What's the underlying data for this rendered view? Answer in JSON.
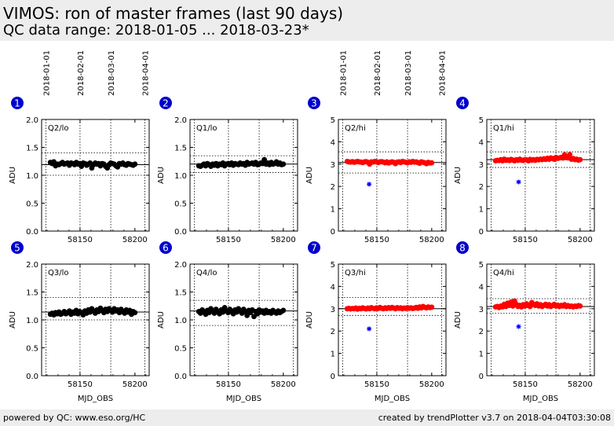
{
  "header": {
    "title": "VIMOS: ron of master frames (last 90 days)",
    "subtitle": "QC data range: 2018-01-05 ... 2018-03-23*"
  },
  "footer": {
    "left": "powered by QC: www.eso.org/HC",
    "right": "created by trendPlotter v3.7 on 2018-04-04T03:30:08"
  },
  "colors": {
    "lo_series": "#000000",
    "hi_series": "#ff0000",
    "outlier": "#0000ff",
    "badge": "#0000cc"
  },
  "top_date_axis": {
    "labels": [
      "2018-01-01",
      "2018-02-01",
      "2018-03-01",
      "2018-04-01"
    ],
    "mjd": [
      58119,
      58150,
      58178,
      58209
    ]
  },
  "chart_data": [
    {
      "type": "scatter",
      "badge": "1",
      "panel_label": "Q2/lo",
      "ylabel": "ADU",
      "xlabel": "",
      "xticks": [
        58150,
        58200
      ],
      "xlim": [
        58115,
        58213
      ],
      "ylim": [
        0.0,
        2.0
      ],
      "yticks": [
        "0.0",
        "0.5",
        "1.0",
        "1.5",
        "2.0"
      ],
      "mean": 1.19,
      "band": [
        1.0,
        1.4
      ],
      "series": [
        {
          "color": "black",
          "x_start": 58123,
          "x_end": 58200,
          "y_values": [
            1.23,
            1.21,
            1.24,
            1.17,
            1.2,
            1.19,
            1.21,
            1.23,
            1.2,
            1.21,
            1.22,
            1.18,
            1.22,
            1.21,
            1.19,
            1.23,
            1.2,
            1.21,
            1.16,
            1.22,
            1.21,
            1.18,
            1.2,
            1.22,
            1.13,
            1.19,
            1.22,
            1.2,
            1.21,
            1.17,
            1.21,
            1.2,
            1.16,
            1.13,
            1.19,
            1.22,
            1.21,
            1.2,
            1.17,
            1.15,
            1.21,
            1.2,
            1.22,
            1.19,
            1.18,
            1.21,
            1.2,
            1.19,
            1.18,
            1.2
          ]
        }
      ],
      "outliers": []
    },
    {
      "type": "scatter",
      "badge": "2",
      "panel_label": "Q1/lo",
      "ylabel": "ADU",
      "xlabel": "",
      "xticks": [
        58150,
        58200
      ],
      "xlim": [
        58115,
        58213
      ],
      "ylim": [
        0.0,
        2.0
      ],
      "yticks": [
        "0.0",
        "0.5",
        "1.0",
        "1.5",
        "2.0"
      ],
      "mean": 1.2,
      "band": [
        1.05,
        1.35
      ],
      "series": [
        {
          "color": "black",
          "x_start": 58123,
          "x_end": 58200,
          "y_values": [
            1.17,
            1.16,
            1.18,
            1.2,
            1.17,
            1.21,
            1.19,
            1.16,
            1.2,
            1.18,
            1.21,
            1.17,
            1.2,
            1.19,
            1.22,
            1.17,
            1.2,
            1.21,
            1.19,
            1.22,
            1.18,
            1.21,
            1.2,
            1.19,
            1.22,
            1.2,
            1.21,
            1.18,
            1.23,
            1.2,
            1.21,
            1.22,
            1.2,
            1.23,
            1.19,
            1.2,
            1.22,
            1.21,
            1.28,
            1.2,
            1.22,
            1.19,
            1.23,
            1.2,
            1.21,
            1.24,
            1.2,
            1.22,
            1.19,
            1.2
          ]
        }
      ],
      "outliers": []
    },
    {
      "type": "scatter",
      "badge": "3",
      "panel_label": "Q2/hi",
      "ylabel": "ADU",
      "xlabel": "",
      "xticks": [
        58150,
        58200
      ],
      "xlim": [
        58115,
        58213
      ],
      "ylim": [
        0,
        5
      ],
      "yticks": [
        "0",
        "1",
        "2",
        "3",
        "4",
        "5"
      ],
      "mean": 3.07,
      "band": [
        2.6,
        3.55
      ],
      "series": [
        {
          "color": "red",
          "x_start": 58123,
          "x_end": 58200,
          "y_values": [
            3.12,
            3.1,
            3.09,
            3.11,
            3.08,
            3.1,
            3.12,
            3.1,
            3.09,
            3.07,
            3.1,
            3.11,
            3.08,
            3.0,
            3.1,
            3.09,
            3.12,
            3.1,
            3.07,
            3.1,
            3.11,
            3.09,
            3.06,
            3.1,
            3.05,
            3.08,
            3.1,
            3.08,
            3.02,
            3.09,
            3.1,
            3.07,
            3.12,
            3.1,
            3.08,
            3.06,
            3.1,
            3.08,
            3.12,
            3.09,
            3.1,
            3.07,
            3.04,
            3.1,
            3.08,
            3.06,
            3.02,
            3.08,
            3.05,
            3.06
          ]
        }
      ],
      "outliers": [
        {
          "x": 58143,
          "y": 2.1
        }
      ]
    },
    {
      "type": "scatter",
      "badge": "4",
      "panel_label": "Q1/hi",
      "ylabel": "ADU",
      "xlabel": "",
      "xticks": [
        58150,
        58200
      ],
      "xlim": [
        58115,
        58213
      ],
      "ylim": [
        0,
        5
      ],
      "yticks": [
        "0",
        "1",
        "2",
        "3",
        "4",
        "5"
      ],
      "mean": 3.2,
      "band": [
        2.85,
        3.55
      ],
      "series": [
        {
          "color": "red",
          "x_start": 58123,
          "x_end": 58200,
          "y_values": [
            3.15,
            3.17,
            3.16,
            3.2,
            3.15,
            3.22,
            3.17,
            3.19,
            3.16,
            3.21,
            3.18,
            3.15,
            3.2,
            3.17,
            3.22,
            3.18,
            3.16,
            3.2,
            3.19,
            3.15,
            3.21,
            3.18,
            3.2,
            3.17,
            3.21,
            3.19,
            3.22,
            3.2,
            3.24,
            3.21,
            3.26,
            3.22,
            3.28,
            3.25,
            3.22,
            3.3,
            3.26,
            3.28,
            3.3,
            3.27,
            3.42,
            3.3,
            3.28,
            3.43,
            3.22,
            3.25,
            3.2,
            3.22,
            3.18,
            3.2
          ]
        }
      ],
      "outliers": [
        {
          "x": 58144,
          "y": 2.2
        }
      ]
    },
    {
      "type": "scatter",
      "badge": "5",
      "panel_label": "Q3/lo",
      "ylabel": "ADU",
      "xlabel": "",
      "xticks": [
        58150,
        58200
      ],
      "xlim": [
        58115,
        58213
      ],
      "ylim": [
        0.0,
        2.0
      ],
      "yticks": [
        "0.0",
        "0.5",
        "1.0",
        "1.5",
        "2.0"
      ],
      "mean": 1.14,
      "band": [
        1.0,
        1.4
      ],
      "series": [
        {
          "color": "black",
          "x_start": 58123,
          "x_end": 58200,
          "y_values": [
            1.1,
            1.12,
            1.09,
            1.13,
            1.11,
            1.14,
            1.1,
            1.12,
            1.15,
            1.11,
            1.13,
            1.16,
            1.1,
            1.14,
            1.12,
            1.17,
            1.11,
            1.15,
            1.13,
            1.09,
            1.16,
            1.12,
            1.18,
            1.14,
            1.2,
            1.16,
            1.12,
            1.18,
            1.15,
            1.21,
            1.17,
            1.13,
            1.19,
            1.15,
            1.2,
            1.17,
            1.14,
            1.2,
            1.16,
            1.18,
            1.13,
            1.19,
            1.15,
            1.12,
            1.18,
            1.14,
            1.17,
            1.1,
            1.15,
            1.13
          ]
        }
      ],
      "outliers": []
    },
    {
      "type": "scatter",
      "badge": "6",
      "panel_label": "Q4/lo",
      "ylabel": "ADU",
      "xlabel": "",
      "xticks": [
        58150,
        58200
      ],
      "xlim": [
        58115,
        58213
      ],
      "ylim": [
        0.0,
        2.0
      ],
      "yticks": [
        "0.0",
        "0.5",
        "1.0",
        "1.5",
        "2.0"
      ],
      "mean": 1.16,
      "band": [
        0.9,
        1.35
      ],
      "series": [
        {
          "color": "black",
          "x_start": 58123,
          "x_end": 58200,
          "y_values": [
            1.15,
            1.12,
            1.18,
            1.14,
            1.1,
            1.17,
            1.13,
            1.2,
            1.16,
            1.12,
            1.19,
            1.15,
            1.11,
            1.18,
            1.14,
            1.22,
            1.16,
            1.13,
            1.19,
            1.15,
            1.11,
            1.18,
            1.14,
            1.2,
            1.16,
            1.12,
            1.19,
            1.15,
            1.08,
            1.17,
            1.13,
            1.18,
            1.06,
            1.15,
            1.11,
            1.18,
            1.14,
            1.16,
            1.12,
            1.17,
            1.13,
            1.15,
            1.12,
            1.17,
            1.14,
            1.12,
            1.16,
            1.13,
            1.15,
            1.17
          ]
        }
      ],
      "outliers": []
    },
    {
      "type": "scatter",
      "badge": "7",
      "panel_label": "Q3/hi",
      "ylabel": "ADU",
      "xlabel": "",
      "xticks": [
        58150,
        58200
      ],
      "xlim": [
        58115,
        58213
      ],
      "ylim": [
        0,
        5
      ],
      "yticks": [
        "0",
        "1",
        "2",
        "3",
        "4",
        "5"
      ],
      "mean": 3.0,
      "band": [
        2.7,
        3.5
      ],
      "series": [
        {
          "color": "red",
          "x_start": 58123,
          "x_end": 58200,
          "y_values": [
            3.0,
            3.02,
            2.99,
            3.01,
            3.0,
            3.03,
            2.98,
            3.02,
            3.0,
            3.04,
            3.01,
            2.99,
            3.03,
            3.0,
            3.05,
            3.02,
            3.0,
            3.04,
            3.01,
            3.06,
            3.02,
            3.0,
            3.04,
            3.01,
            3.05,
            3.02,
            3.06,
            3.03,
            3.0,
            3.05,
            3.02,
            3.04,
            3.0,
            3.03,
            3.01,
            3.05,
            3.02,
            3.04,
            3.01,
            3.03,
            3.06,
            3.02,
            3.08,
            3.04,
            3.1,
            3.06,
            3.04,
            3.08,
            3.05,
            3.07
          ]
        }
      ],
      "outliers": [
        {
          "x": 58143,
          "y": 2.1
        }
      ]
    },
    {
      "type": "scatter",
      "badge": "8",
      "panel_label": "Q4/hi",
      "ylabel": "ADU",
      "xlabel": "",
      "xticks": [
        58150,
        58200
      ],
      "xlim": [
        58115,
        58213
      ],
      "ylim": [
        0,
        5
      ],
      "yticks": [
        "0",
        "1",
        "2",
        "3",
        "4",
        "5"
      ],
      "mean": 3.1,
      "band": [
        2.8,
        3.45
      ],
      "series": [
        {
          "color": "red",
          "x_start": 58123,
          "x_end": 58200,
          "y_values": [
            3.08,
            3.1,
            3.05,
            3.12,
            3.08,
            3.2,
            3.1,
            3.25,
            3.15,
            3.3,
            3.12,
            3.35,
            3.2,
            3.1,
            3.15,
            3.08,
            3.18,
            3.12,
            3.22,
            3.14,
            3.1,
            3.28,
            3.2,
            3.15,
            3.22,
            3.12,
            3.18,
            3.1,
            3.15,
            3.2,
            3.12,
            3.18,
            3.1,
            3.14,
            3.2,
            3.12,
            3.16,
            3.1,
            3.15,
            3.12,
            3.18,
            3.1,
            3.14,
            3.1,
            3.12,
            3.08,
            3.12,
            3.1,
            3.14,
            3.12
          ]
        }
      ],
      "outliers": [
        {
          "x": 58144,
          "y": 2.2
        }
      ]
    }
  ]
}
